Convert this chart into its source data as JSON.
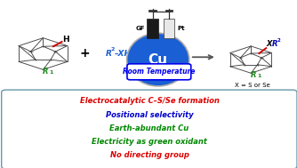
{
  "bg_color": "#ffffff",
  "bullet_lines": [
    {
      "text": "Electrocatalytic C–S/Se formation",
      "color": "#dd0000"
    },
    {
      "text": "Positional selectivity",
      "color": "#0000cc"
    },
    {
      "text": "Earth-abundant Cu",
      "color": "#008800"
    },
    {
      "text": "Electricity as green oxidant",
      "color": "#008800"
    },
    {
      "text": "No directing group",
      "color": "#dd0000"
    }
  ],
  "box_edge_color": "#6699aa",
  "cu_circle_color": "#1a5fd4",
  "cu_text_color": "#ffffff",
  "rt_text_color": "#0000ee",
  "rt_border_color": "#0000ee",
  "arrow_color": "#555555",
  "r2xh_color": "#1a5fd4",
  "r1_color": "#228822",
  "xr2_color": "#0000bb",
  "cage_color": "#444444",
  "h_bond_color": "#cc0000",
  "x_eq_color": "#000000"
}
